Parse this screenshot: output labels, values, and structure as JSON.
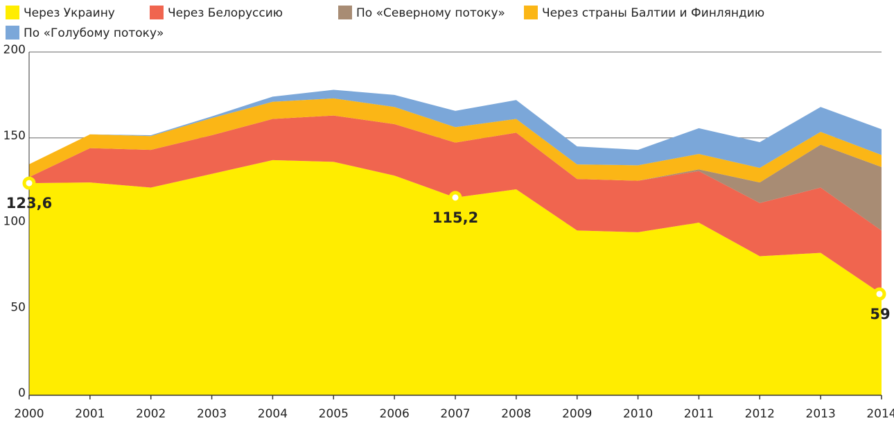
{
  "chart_data": {
    "type": "stacked_area",
    "categories": [
      "2000",
      "2001",
      "2002",
      "2003",
      "2004",
      "2005",
      "2006",
      "2007",
      "2008",
      "2009",
      "2010",
      "2011",
      "2012",
      "2013",
      "2014"
    ],
    "series": [
      {
        "name": "Через Украину",
        "color": "#ffed00",
        "values": [
          123.6,
          124,
          121,
          129,
          137,
          136,
          128,
          115.2,
          120,
          96,
          95,
          100.6,
          81,
          83,
          59
        ],
        "value_labels": [
          "123,6",
          null,
          null,
          null,
          null,
          null,
          null,
          "115,2",
          null,
          null,
          null,
          null,
          null,
          null,
          "59"
        ]
      },
      {
        "name": "Через Белоруссию",
        "color": "#f0654f",
        "values": [
          3.5,
          20,
          22,
          22.5,
          24,
          27,
          30,
          32,
          33,
          30,
          30,
          30,
          31,
          38,
          37
        ]
      },
      {
        "name": "По «Северному потоку»",
        "color": "#a88c74",
        "values": [
          0,
          0,
          0,
          0,
          0,
          0,
          0,
          0,
          0,
          0,
          0,
          1,
          12,
          25,
          37
        ]
      },
      {
        "name": "Через страны Балтии и Финляндию",
        "color": "#fbb616",
        "values": [
          7.5,
          8,
          8,
          10,
          10,
          10,
          10,
          9,
          8,
          8.5,
          9,
          9,
          8.5,
          7.5,
          7
        ]
      },
      {
        "name": "По «Голубому потоку»",
        "color": "#7ba7d9",
        "values": [
          0,
          0,
          0.5,
          1,
          3,
          5,
          7,
          9.5,
          11,
          10.5,
          9,
          15,
          15,
          14.5,
          15
        ]
      }
    ],
    "ylim": [
      0,
      200
    ],
    "yticks": [
      0,
      50,
      100,
      150,
      200
    ],
    "grid": true
  }
}
